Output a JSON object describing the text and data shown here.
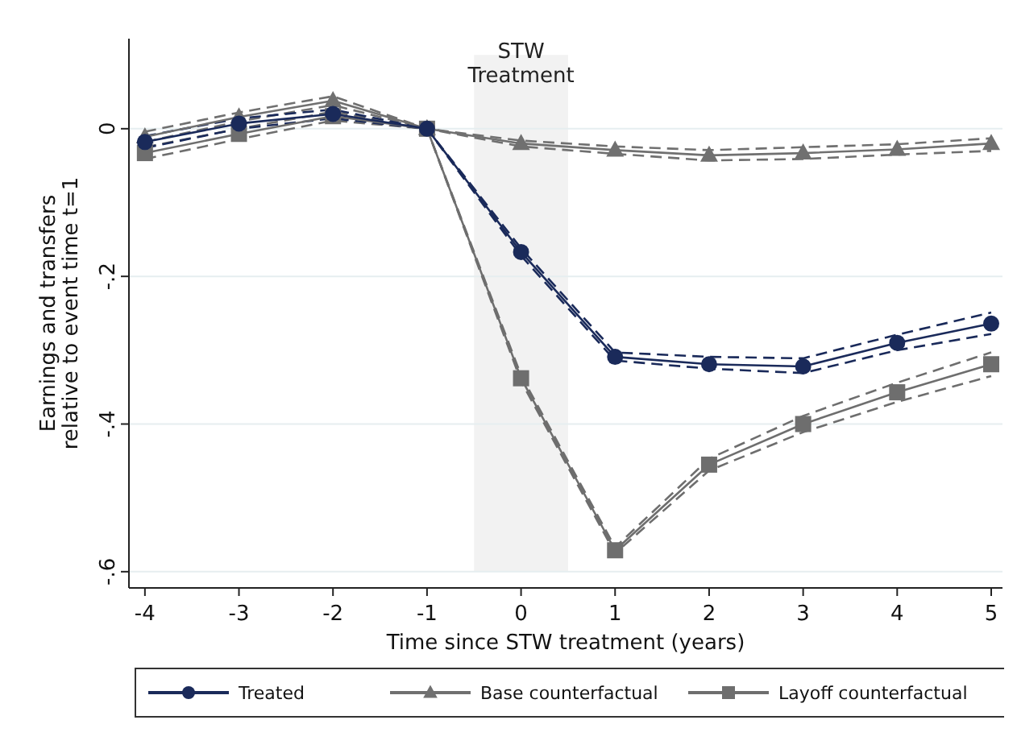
{
  "chart_data": {
    "type": "line",
    "xlabel": "Time since STW treatment (years)",
    "ylabel": "Earnings and transfers\nrelative to event time t=1",
    "x": [
      -4,
      -3,
      -2,
      -1,
      0,
      1,
      2,
      3,
      4,
      5
    ],
    "xlim": [
      -4.17,
      5.12
    ],
    "xticks": [
      -4,
      -3,
      -2,
      -1,
      0,
      1,
      2,
      3,
      4,
      5
    ],
    "ylim": [
      -0.622,
      0.122
    ],
    "yticks": [
      {
        "value": 0,
        "label": "0"
      },
      {
        "value": -0.2,
        "label": "-.2"
      },
      {
        "value": -0.4,
        "label": "-.4"
      },
      {
        "value": -0.6,
        "label": "-.6"
      }
    ],
    "grid": "y",
    "legend": "bottom",
    "bands": [
      {
        "axis": "x",
        "from": -0.5,
        "to": 0.5,
        "label": "STW\nTreatment",
        "color": "#f2f2f2"
      }
    ],
    "series": [
      {
        "name": "Treated",
        "color": "#1a2a5a",
        "marker": "circle",
        "line_style": "solid",
        "values": [
          -0.018,
          0.007,
          0.02,
          0,
          -0.167,
          -0.309,
          -0.319,
          -0.322,
          -0.29,
          -0.264
        ]
      },
      {
        "name": "Base counterfactual",
        "color": "#707070",
        "marker": "triangle",
        "line_style": "solid",
        "values": [
          -0.011,
          0.016,
          0.038,
          0,
          -0.02,
          -0.029,
          -0.036,
          -0.033,
          -0.028,
          -0.02
        ]
      },
      {
        "name": "Layoff counterfactual",
        "color": "#6e6e6e",
        "marker": "square",
        "line_style": "solid",
        "values": [
          -0.033,
          -0.007,
          0.017,
          0,
          -0.338,
          -0.571,
          -0.455,
          -0.4,
          -0.357,
          -0.319
        ]
      },
      {
        "color": "#1a2a5a",
        "marker": "none",
        "line_style": "dashed",
        "values": [
          -0.026,
          0.0,
          0.014,
          0,
          -0.172,
          -0.314,
          -0.325,
          -0.331,
          -0.3,
          -0.278
        ]
      },
      {
        "color": "#1a2a5a",
        "marker": "none",
        "line_style": "dashed",
        "values": [
          -0.01,
          0.014,
          0.026,
          0,
          -0.162,
          -0.303,
          -0.309,
          -0.311,
          -0.279,
          -0.249
        ]
      },
      {
        "color": "#707070",
        "marker": "none",
        "line_style": "dashed",
        "values": [
          -0.018,
          0.01,
          0.032,
          0,
          -0.024,
          -0.034,
          -0.043,
          -0.041,
          -0.035,
          -0.03
        ]
      },
      {
        "color": "#707070",
        "marker": "none",
        "line_style": "dashed",
        "values": [
          -0.004,
          0.022,
          0.044,
          0,
          -0.016,
          -0.024,
          -0.029,
          -0.025,
          -0.021,
          -0.013
        ]
      },
      {
        "color": "#6e6e6e",
        "marker": "none",
        "line_style": "dashed",
        "values": [
          -0.041,
          -0.014,
          0.011,
          0,
          -0.342,
          -0.575,
          -0.463,
          -0.411,
          -0.37,
          -0.335
        ]
      },
      {
        "color": "#6e6e6e",
        "marker": "none",
        "line_style": "dashed",
        "values": [
          -0.025,
          0.0,
          0.023,
          0,
          -0.334,
          -0.567,
          -0.447,
          -0.389,
          -0.344,
          -0.303
        ]
      }
    ]
  }
}
